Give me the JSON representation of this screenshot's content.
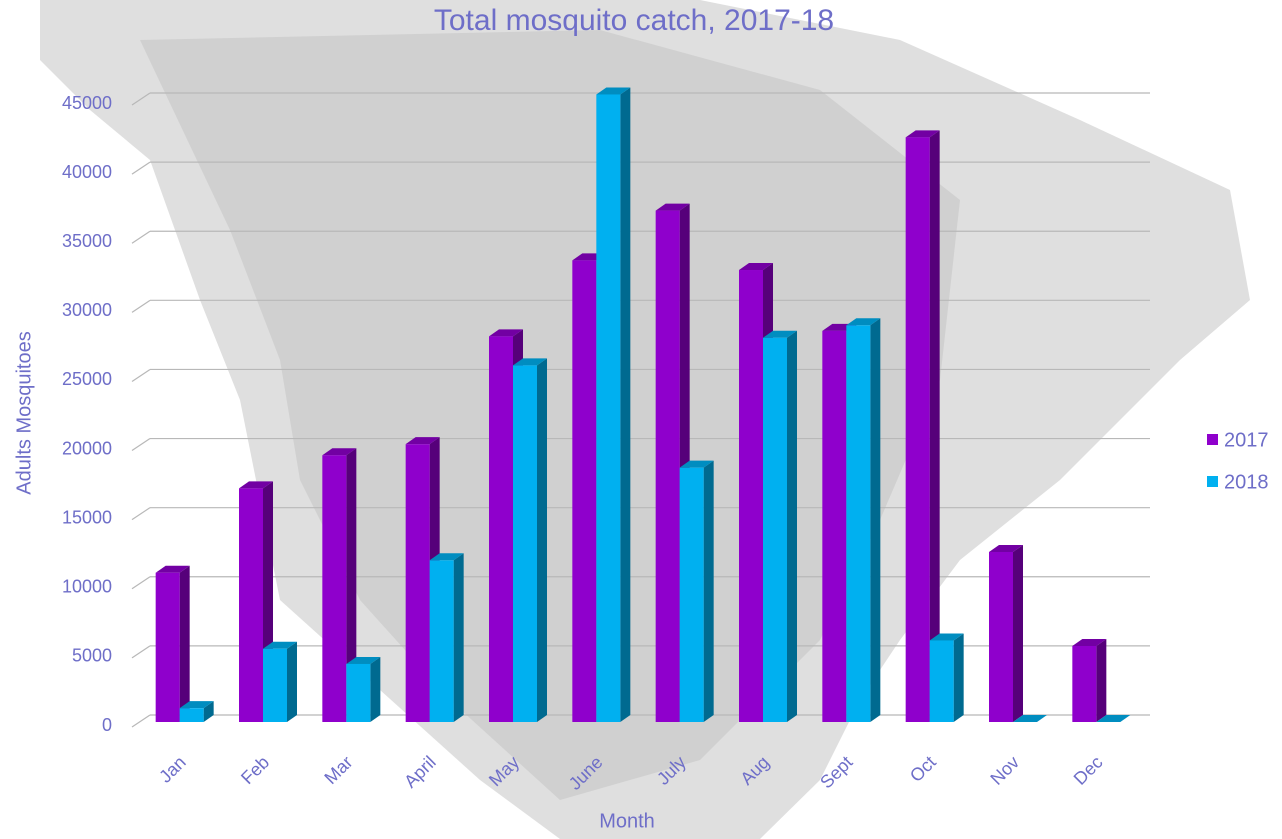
{
  "chart_data": {
    "type": "bar",
    "title": "Total mosquito catch, 2017-18",
    "x_label": "Month",
    "y_label": "Adults Mosquitoes",
    "categories": [
      "Jan",
      "Feb",
      "Mar",
      "April",
      "May",
      "June",
      "July",
      "Aug",
      "Sept",
      "Oct",
      "Nov",
      "Dec"
    ],
    "series": [
      {
        "name": "2017",
        "color": "#8f00cc",
        "values": [
          10800,
          16900,
          19300,
          20100,
          27900,
          33400,
          37000,
          32700,
          28300,
          42300,
          12300,
          5500
        ]
      },
      {
        "name": "2018",
        "color": "#00b0f0",
        "values": [
          1000,
          5300,
          4200,
          11700,
          25800,
          45400,
          18400,
          27800,
          28700,
          5900,
          0,
          0
        ]
      }
    ],
    "ylim": [
      0,
      45000
    ],
    "yticks": [
      0,
      5000,
      10000,
      15000,
      20000,
      25000,
      30000,
      35000,
      40000,
      45000
    ],
    "grid": true,
    "legend": "right"
  }
}
